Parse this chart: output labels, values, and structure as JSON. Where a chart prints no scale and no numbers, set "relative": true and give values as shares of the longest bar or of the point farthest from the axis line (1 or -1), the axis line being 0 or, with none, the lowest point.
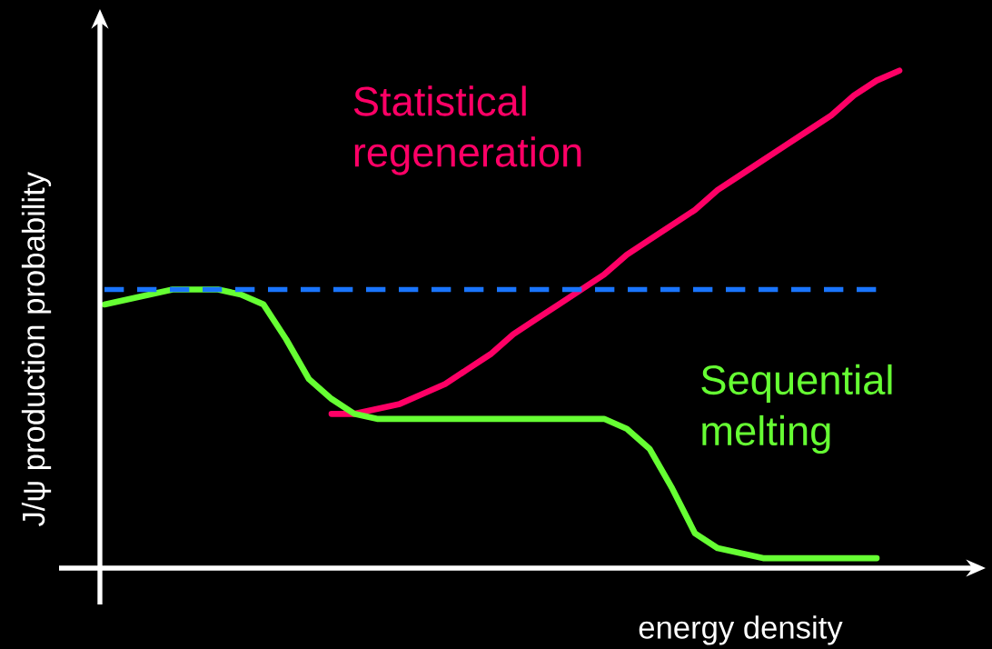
{
  "chart_data": {
    "type": "line",
    "relative": true,
    "xlabel": "energy density",
    "ylabel": "J/ψ production probability",
    "categories": [
      null,
      null,
      null,
      null,
      null,
      null,
      null,
      null,
      null,
      null,
      null,
      null,
      null,
      null,
      null,
      null,
      null,
      null,
      null,
      null,
      null,
      null,
      null,
      null,
      null,
      null,
      null,
      null,
      null,
      null,
      null,
      null,
      null,
      null,
      null,
      null
    ],
    "series": [
      {
        "name": "Statistical regeneration",
        "color": "#ff0066",
        "values": [
          null,
          null,
          null,
          null,
          null,
          null,
          null,
          null,
          null,
          null,
          0.31,
          0.31,
          0.32,
          0.33,
          0.35,
          0.37,
          0.4,
          0.43,
          0.47,
          0.5,
          0.53,
          0.56,
          0.59,
          0.63,
          0.66,
          0.69,
          0.72,
          0.76,
          0.79,
          0.82,
          0.85,
          0.88,
          0.91,
          0.95,
          0.98,
          1
        ]
      },
      {
        "name": "Sequential melting",
        "color": "#66ff33",
        "values": [
          0.53,
          0.54,
          0.55,
          0.56,
          0.56,
          0.56,
          0.55,
          0.53,
          0.46,
          0.38,
          0.34,
          0.31,
          0.3,
          0.3,
          0.3,
          0.3,
          0.3,
          0.3,
          0.3,
          0.3,
          0.3,
          0.3,
          0.3,
          0.28,
          0.24,
          0.16,
          0.07,
          0.04,
          0.03,
          0.02,
          0.02,
          0.02,
          0.02,
          0.02,
          0.02,
          null
        ]
      }
    ],
    "ref_lines": [
      {
        "axis": "y",
        "value": 0.56,
        "color": "#1a75ff",
        "line_style": "dashed"
      }
    ],
    "line_style": "solid"
  }
}
